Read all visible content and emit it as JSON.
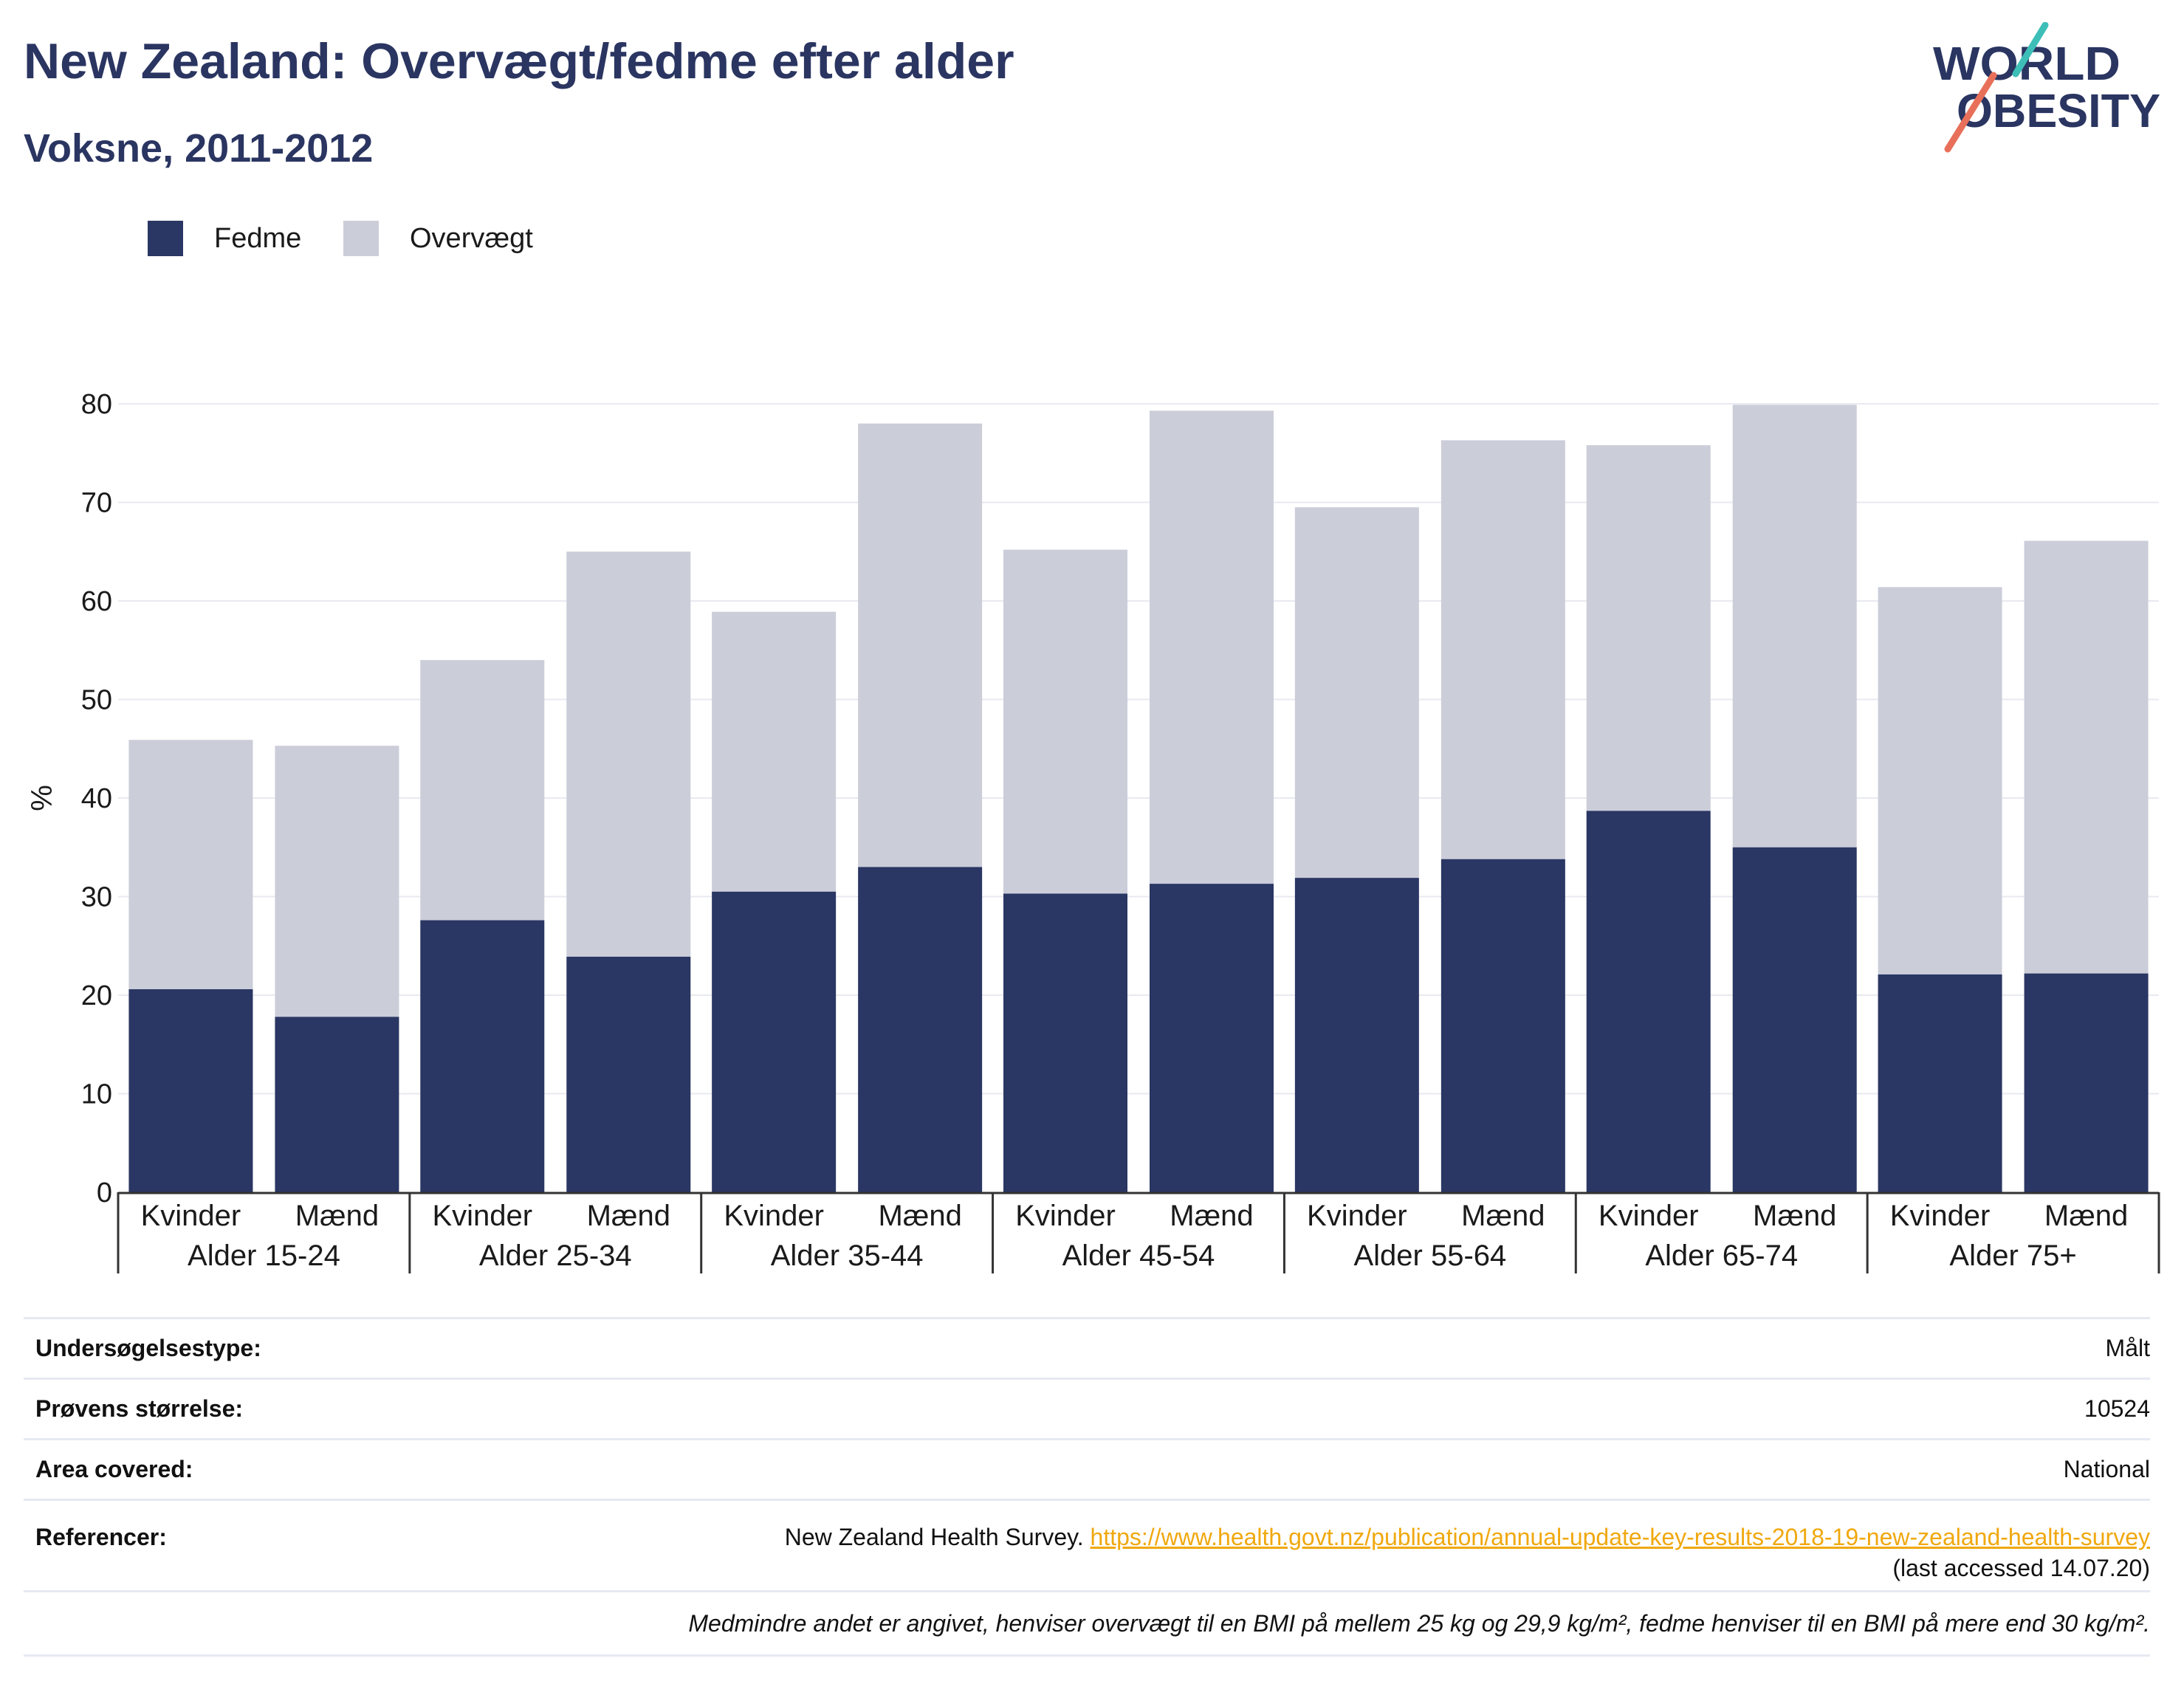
{
  "header": {
    "title": "New Zealand: Overvægt/fedme efter alder",
    "subtitle": "Voksne, 2011-2012"
  },
  "logo": {
    "line1": "WORLD",
    "line2": "OBESITY"
  },
  "colors": {
    "obesity": "#2a3663",
    "overweight": "#cbcdd9",
    "title": "#2a3561",
    "link": "#f0a80e",
    "logo_accent_teal": "#3dbfb8",
    "logo_accent_coral": "#e8705a"
  },
  "chart_data": {
    "type": "bar",
    "stacked": true,
    "title": "New Zealand: Overvægt/fedme efter alder",
    "subtitle": "Voksne, 2011-2012",
    "ylabel": "%",
    "ylim": [
      0,
      80
    ],
    "yticks": [
      0,
      10,
      20,
      30,
      40,
      50,
      60,
      70,
      80
    ],
    "grid": true,
    "legend_position": "top-left",
    "groups": [
      "Alder 15-24",
      "Alder 25-34",
      "Alder 35-44",
      "Alder 45-54",
      "Alder 55-64",
      "Alder 65-74",
      "Alder 75+"
    ],
    "subcategories": [
      "Kvinder",
      "Mænd"
    ],
    "series": [
      {
        "name": "Fedme",
        "values": [
          20.6,
          17.8,
          27.6,
          23.9,
          30.5,
          33.0,
          30.3,
          31.3,
          31.9,
          33.8,
          38.7,
          35.0,
          22.1,
          22.2
        ]
      },
      {
        "name": "Overvægt",
        "values": [
          25.3,
          27.5,
          26.4,
          41.1,
          28.4,
          45.0,
          34.9,
          48.0,
          37.6,
          42.5,
          37.1,
          44.9,
          39.3,
          43.9
        ]
      }
    ]
  },
  "info": {
    "survey_type_label": "Undersøgelsestype:",
    "survey_type_value": "Målt",
    "sample_size_label": "Prøvens størrelse:",
    "sample_size_value": "10524",
    "area_label": "Area covered:",
    "area_value": "National",
    "references_label": "Referencer:",
    "references_text": "New Zealand Health Survey. ",
    "references_link": "https://www.health.govt.nz/publication/annual-update-key-results-2018-19-new-zealand-health-survey",
    "references_accessed": "(last accessed 14.07.20)",
    "note": "Medmindre andet er angivet, henviser overvægt til en BMI på mellem 25 kg og 29,9 kg/m², fedme henviser til en BMI på mere end 30 kg/m²."
  }
}
